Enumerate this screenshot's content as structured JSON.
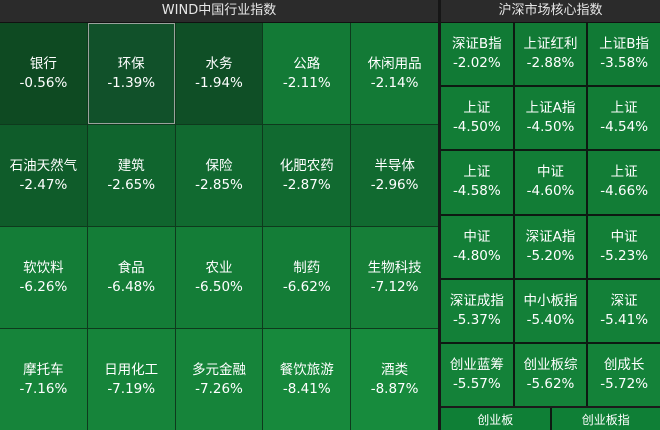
{
  "left_panel": {
    "title": "WIND中国行业指数",
    "tiles": [
      {
        "name": "银行",
        "value": "-0.56%",
        "color": "#0e4a22"
      },
      {
        "name": "环保",
        "value": "-1.39%",
        "color": "#11512a"
      },
      {
        "name": "水务",
        "value": "-1.94%",
        "color": "#0f4f26"
      },
      {
        "name": "公路",
        "value": "-2.11%",
        "color": "#137a36"
      },
      {
        "name": "休闲用品",
        "value": "-2.14%",
        "color": "#137a36"
      },
      {
        "name": "石油天然气",
        "value": "-2.47%",
        "color": "#0f5c2a"
      },
      {
        "name": "建筑",
        "value": "-2.65%",
        "color": "#10652e"
      },
      {
        "name": "保险",
        "value": "-2.85%",
        "color": "#116a30"
      },
      {
        "name": "化肥农药",
        "value": "-2.87%",
        "color": "#116a30"
      },
      {
        "name": "半导体",
        "value": "-2.96%",
        "color": "#116a30"
      },
      {
        "name": "软饮料",
        "value": "-6.26%",
        "color": "#147d37"
      },
      {
        "name": "食品",
        "value": "-6.48%",
        "color": "#147d37"
      },
      {
        "name": "农业",
        "value": "-6.50%",
        "color": "#147d37"
      },
      {
        "name": "制药",
        "value": "-6.62%",
        "color": "#147d37"
      },
      {
        "name": "生物科技",
        "value": "-7.12%",
        "color": "#167f38"
      },
      {
        "name": "摩托车",
        "value": "-7.16%",
        "color": "#16843a"
      },
      {
        "name": "日用化工",
        "value": "-7.19%",
        "color": "#16843a"
      },
      {
        "name": "多元金融",
        "value": "-7.26%",
        "color": "#16843a"
      },
      {
        "name": "餐饮旅游",
        "value": "-8.41%",
        "color": "#17893c"
      },
      {
        "name": "酒类",
        "value": "-8.87%",
        "color": "#178b3d"
      }
    ]
  },
  "right_panel": {
    "title": "沪深市场核心指数",
    "tiles": [
      {
        "name": "深证B指",
        "value": "-2.02%",
        "color": "#117a35"
      },
      {
        "name": "上证红利",
        "value": "-2.88%",
        "color": "#117a35"
      },
      {
        "name": "上证B指",
        "value": "-3.58%",
        "color": "#117a35"
      },
      {
        "name": "上证",
        "value": "-4.50%",
        "color": "#127d36"
      },
      {
        "name": "上证A指",
        "value": "-4.50%",
        "color": "#127d36"
      },
      {
        "name": "上证",
        "value": "-4.54%",
        "color": "#127d36"
      },
      {
        "name": "上证",
        "value": "-4.58%",
        "color": "#127d36"
      },
      {
        "name": "中证",
        "value": "-4.60%",
        "color": "#127d36"
      },
      {
        "name": "上证",
        "value": "-4.66%",
        "color": "#127d36"
      },
      {
        "name": "中证",
        "value": "-4.80%",
        "color": "#137f37"
      },
      {
        "name": "深证A指",
        "value": "-5.20%",
        "color": "#137f37"
      },
      {
        "name": "中证",
        "value": "-5.23%",
        "color": "#137f37"
      },
      {
        "name": "深证成指",
        "value": "-5.37%",
        "color": "#138038"
      },
      {
        "name": "中小板指",
        "value": "-5.40%",
        "color": "#138038"
      },
      {
        "name": "深证",
        "value": "-5.41%",
        "color": "#138038"
      },
      {
        "name": "创业蓝筹",
        "value": "-5.57%",
        "color": "#148239"
      },
      {
        "name": "创业板综",
        "value": "-5.62%",
        "color": "#148239"
      },
      {
        "name": "创成长",
        "value": "-5.72%",
        "color": "#148239"
      }
    ],
    "bottom_tabs": [
      "创业板",
      "创业板指"
    ]
  }
}
